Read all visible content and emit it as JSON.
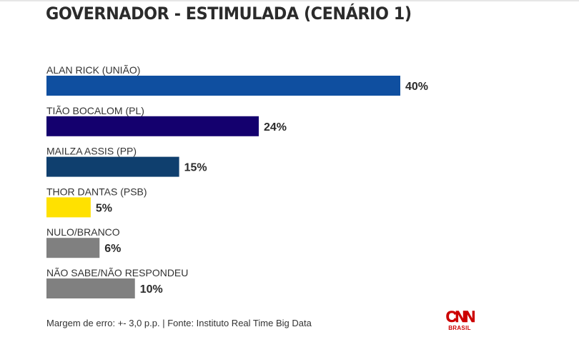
{
  "chart_data": {
    "type": "bar",
    "orientation": "horizontal",
    "title": "GOVERNADOR - ESTIMULADA (CENÁRIO 1)",
    "categories": [
      "ALAN RICK (UNIÃO)",
      "TIÃO BOCALOM (PL)",
      "MAILZA ASSIS (PP)",
      "THOR DANTAS (PSB)",
      "NULO/BRANCO",
      "NÃO SABE/NÃO RESPONDEU"
    ],
    "values": [
      40,
      24,
      15,
      5,
      6,
      10
    ],
    "value_labels": [
      "40%",
      "24%",
      "15%",
      "5%",
      "6%",
      "10%"
    ],
    "colors": [
      "#0f4fa0",
      "#14006e",
      "#0f3f6e",
      "#ffe100",
      "#808080",
      "#808080"
    ],
    "unit": "%",
    "xlim": [
      0,
      40
    ],
    "grid": false,
    "legend": "none",
    "xlabel": "",
    "ylabel": ""
  },
  "footer": {
    "note": "Margem de erro: +- 3,0 p.p. | Fonte: Instituto Real Time Big Data"
  },
  "logo": {
    "main": "CNN",
    "sub": "BRASIL",
    "color": "#cc0000"
  }
}
